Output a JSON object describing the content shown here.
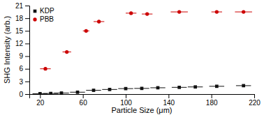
{
  "chart_data": {
    "type": "scatter",
    "xlabel": "Particle Size (μm)",
    "ylabel": "SHG Intensity (arb.)",
    "xlim": [
      10,
      220
    ],
    "ylim": [
      0,
      21
    ],
    "xticks": [
      20,
      60,
      100,
      140,
      180,
      220
    ],
    "yticks": [
      0,
      3,
      6,
      9,
      12,
      15,
      18,
      21
    ],
    "legend": "upper left",
    "series": [
      {
        "name": "KDP",
        "color": "#111111",
        "marker": "square",
        "x": [
          20,
          30,
          40,
          55,
          70,
          85,
          100,
          115,
          130,
          150,
          165,
          185,
          210
        ],
        "values": [
          0.1,
          0.15,
          0.25,
          0.45,
          0.9,
          1.1,
          1.3,
          1.35,
          1.5,
          1.6,
          1.7,
          1.85,
          2.0
        ],
        "xerr": [
          7,
          7,
          7,
          7,
          7,
          7,
          7,
          7,
          7,
          7,
          7,
          7,
          7
        ]
      },
      {
        "name": "PBB",
        "color": "#cc0000",
        "marker": "circle",
        "x": [
          25,
          45,
          63,
          75,
          105,
          120,
          150,
          185,
          210
        ],
        "values": [
          6.0,
          10.0,
          15.0,
          17.2,
          19.2,
          19.0,
          19.5,
          19.5,
          19.5
        ],
        "xerr": [
          5,
          4,
          3,
          5,
          5,
          5,
          8,
          5,
          8
        ]
      }
    ]
  }
}
